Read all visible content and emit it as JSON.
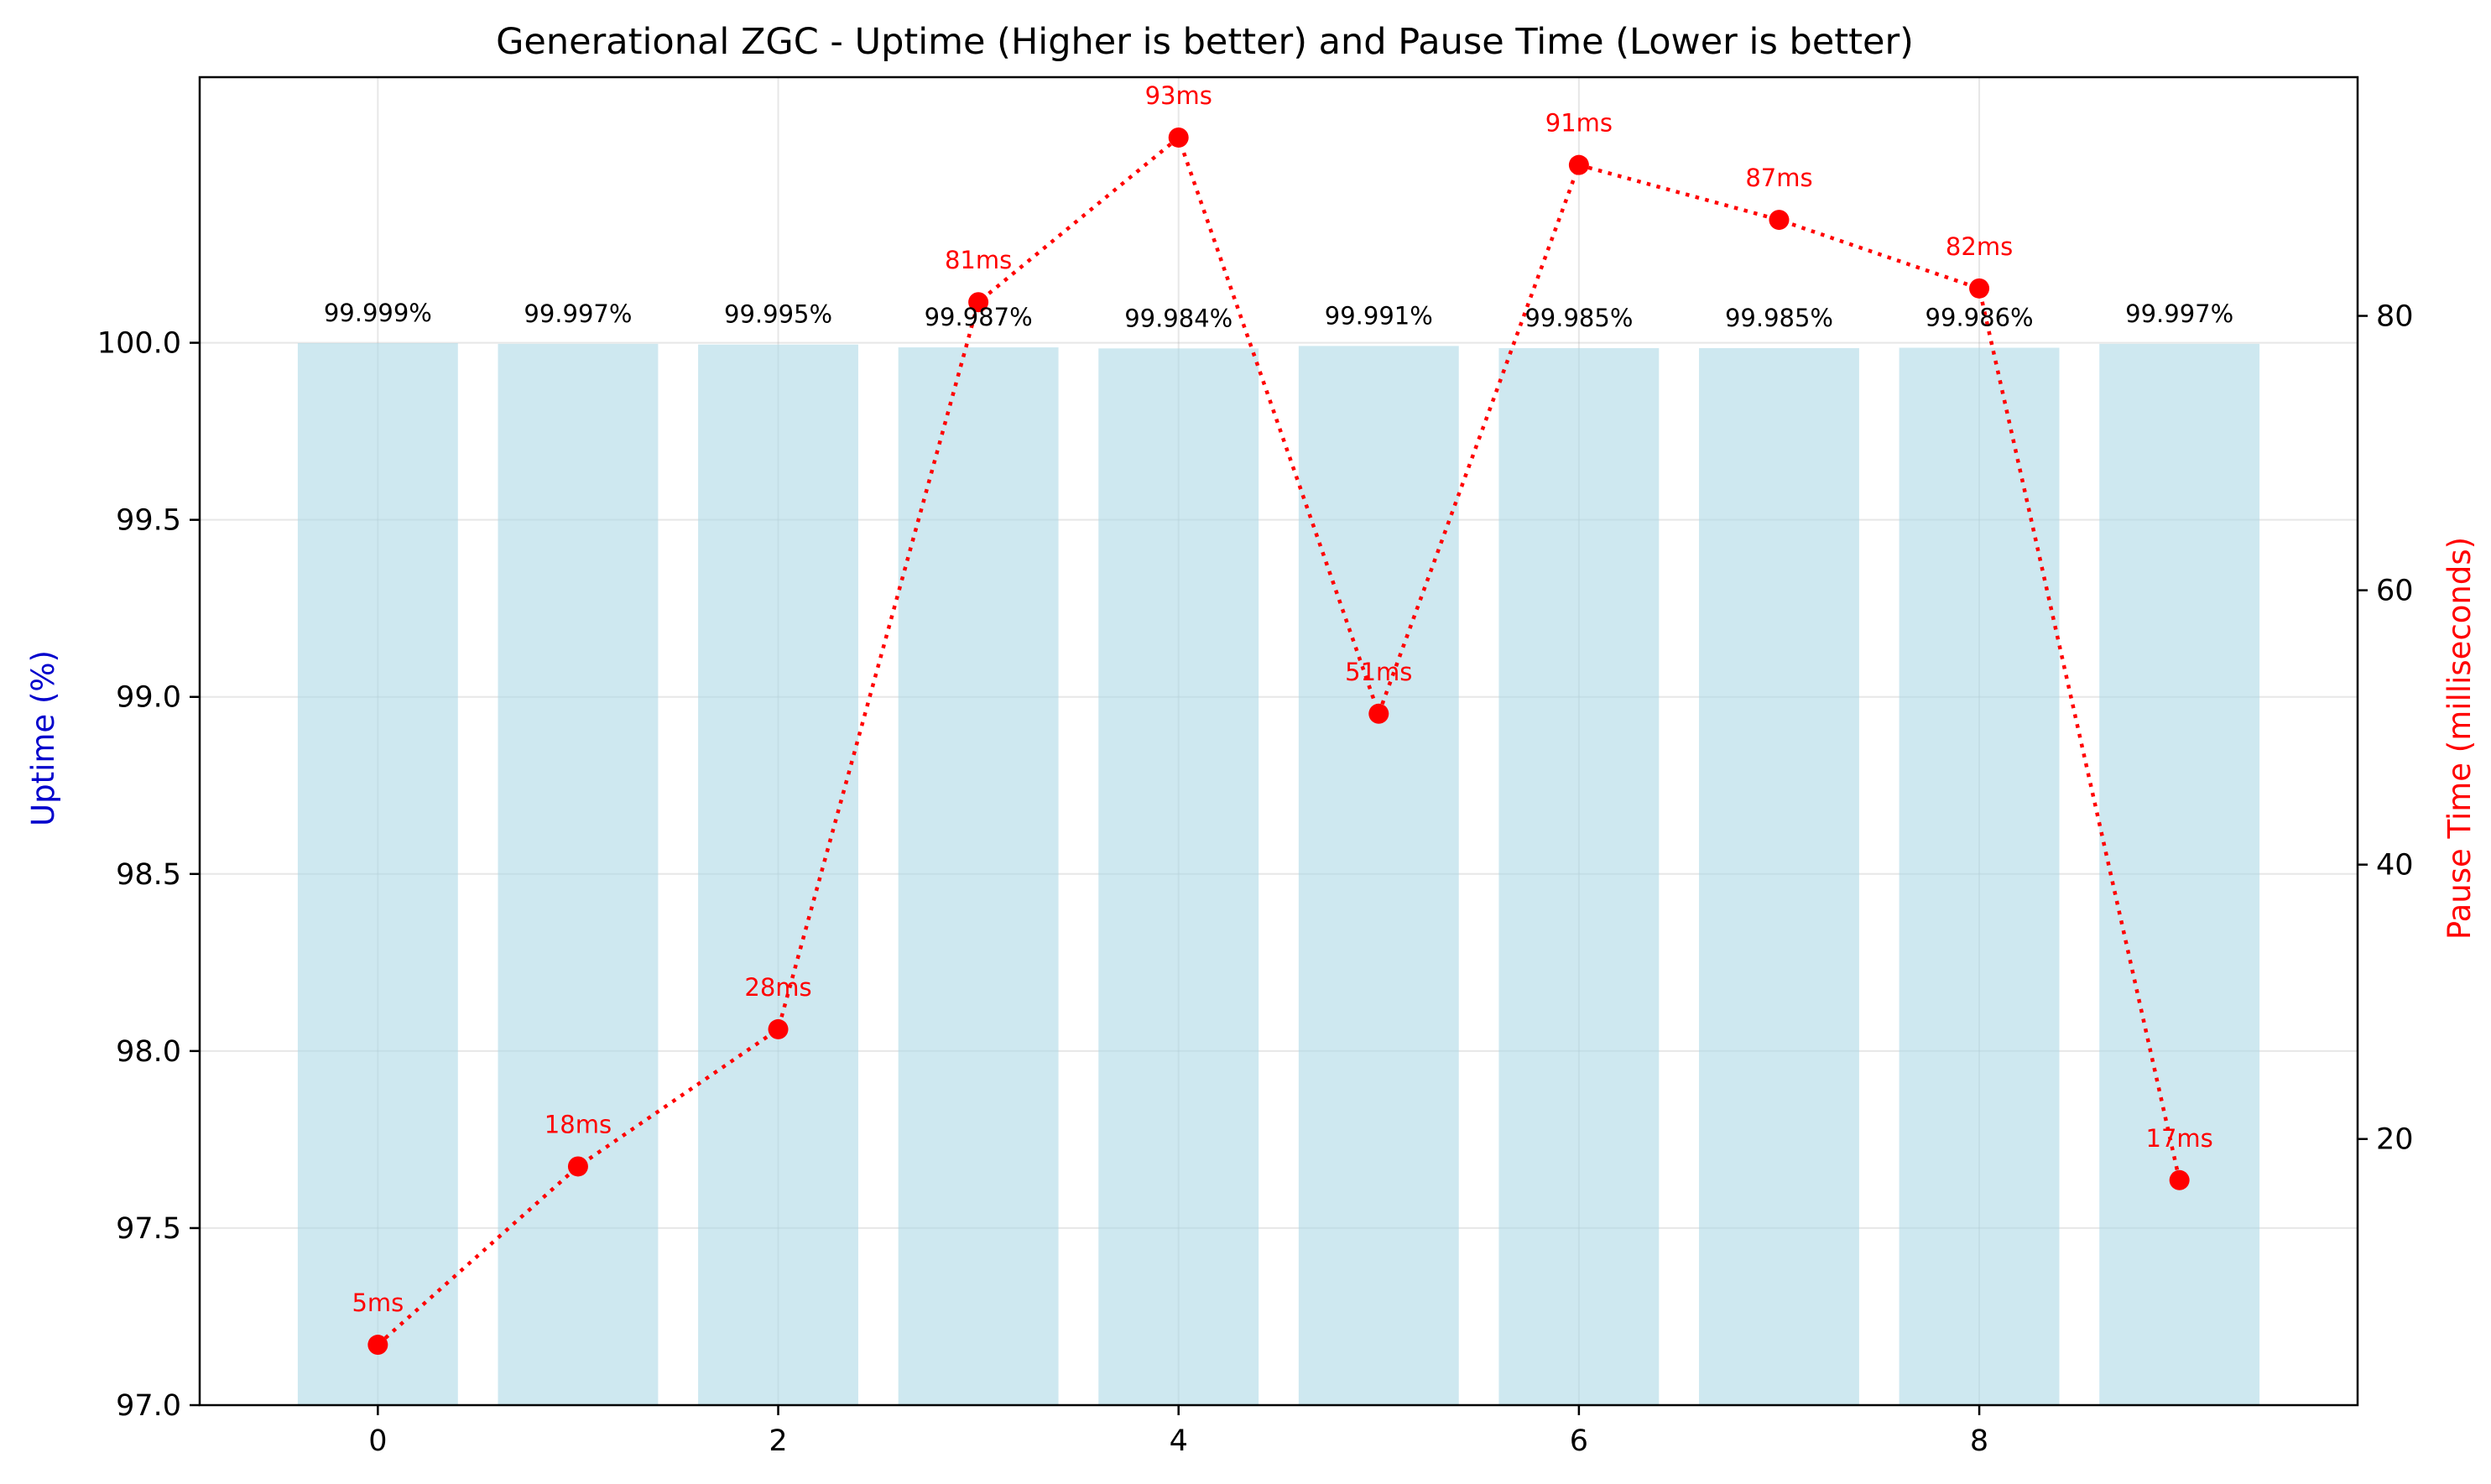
{
  "chart_data": {
    "type": "bar",
    "title": "Generational ZGC - Uptime (Higher is better) and Pause Time (Lower is better)",
    "xlabel": "",
    "x": [
      0,
      1,
      2,
      3,
      4,
      5,
      6,
      7,
      8,
      9
    ],
    "x_ticks": [
      "0",
      "2",
      "4",
      "6",
      "8"
    ],
    "xlim": [
      -0.89,
      9.89
    ],
    "grid": true,
    "series": [
      {
        "type": "bar",
        "axis": "left",
        "values": [
          99.999,
          99.997,
          99.995,
          99.987,
          99.984,
          99.991,
          99.985,
          99.985,
          99.986,
          99.997
        ],
        "labels": [
          "99.999%",
          "99.997%",
          "99.995%",
          "99.987%",
          "99.984%",
          "99.991%",
          "99.985%",
          "99.985%",
          "99.986%",
          "99.997%"
        ],
        "color": "#add8e6"
      },
      {
        "type": "line",
        "axis": "right",
        "values": [
          5,
          18,
          28,
          81,
          93,
          51,
          91,
          87,
          82,
          17
        ],
        "labels": [
          "5ms",
          "18ms",
          "28ms",
          "81ms",
          "93ms",
          "51ms",
          "91ms",
          "87ms",
          "82ms",
          "17ms"
        ],
        "color": "#ff0000",
        "line_style": "dotted",
        "marker": "circle"
      }
    ],
    "y_left": {
      "label": "Uptime (%)",
      "label_color": "#0000cc",
      "ylim": [
        97.0,
        100.75
      ],
      "ticks": [
        "97.0",
        "97.5",
        "98.0",
        "98.5",
        "99.0",
        "99.5",
        "100.0"
      ]
    },
    "y_right": {
      "label": "Pause Time (milliseconds)",
      "label_color": "#ff0000",
      "ylim": [
        0.6,
        97.4
      ],
      "ticks": [
        "20",
        "40",
        "60",
        "80"
      ]
    }
  }
}
